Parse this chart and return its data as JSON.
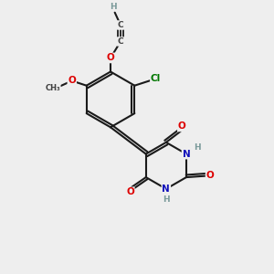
{
  "bg_color": "#eeeeee",
  "atom_colors": {
    "C": "#404040",
    "H": "#7a9a9a",
    "O": "#dd0000",
    "N": "#1111bb",
    "Cl": "#007700"
  },
  "bond_color": "#1a1a1a",
  "bond_width": 1.5,
  "figsize": [
    3.0,
    3.0
  ],
  "dpi": 100
}
